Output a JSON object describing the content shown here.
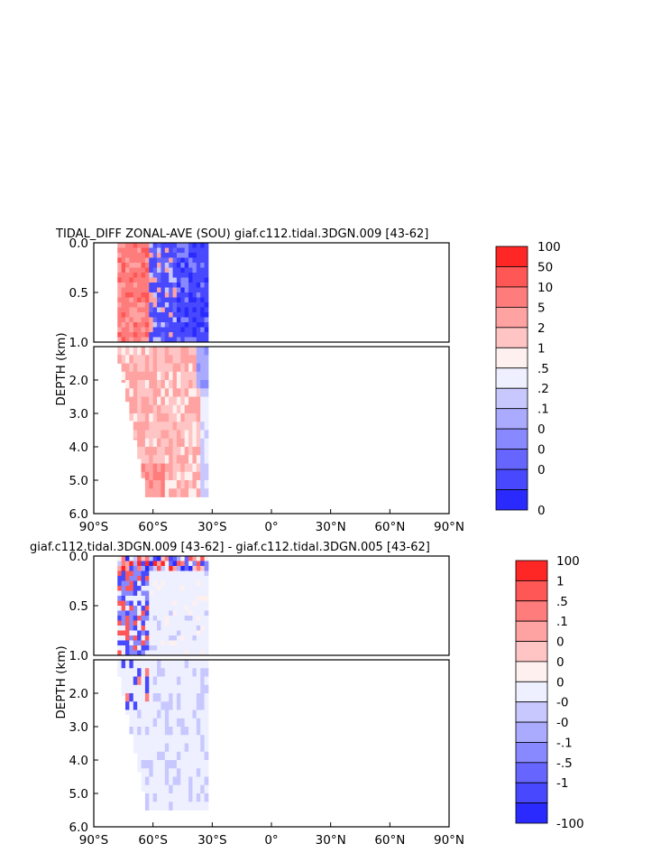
{
  "chart_data": [
    {
      "type": "heatmap",
      "title": "TIDAL_DIFF ZONAL-AVE (SOU) giaf.c112.tidal.3DGN.009 [43-62]",
      "ylabel": "DEPTH (km)",
      "xlim": [
        -90,
        90
      ],
      "ylim_upper_km": [
        0.0,
        1.0
      ],
      "ylim_lower_km": [
        1.0,
        6.0
      ],
      "x_ticks": [
        "90°S",
        "60°S",
        "30°S",
        "0°",
        "30°N",
        "60°N",
        "90°N"
      ],
      "y_ticks_upper": [
        "0.0",
        "0.5",
        "1.0"
      ],
      "y_ticks_lower": [
        "2.0",
        "3.0",
        "4.0",
        "5.0",
        "6.0"
      ],
      "colorbar": {
        "labels": [
          "100",
          "50",
          "10",
          "5",
          "2",
          "1",
          ".5",
          ".2",
          ".1",
          "0",
          "0",
          "0",
          "0"
        ],
        "colors": [
          "#ff2626",
          "#ff5656",
          "#ff7c7c",
          "#ffa2a2",
          "#ffc4c4",
          "#fff0f0",
          "#eef0ff",
          "#c8c8ff",
          "#aaaaff",
          "#8888ff",
          "#6666ff",
          "#4848ff",
          "#2a2aff"
        ]
      },
      "data_extent": {
        "lon_min": -78,
        "lon_max": -32,
        "max_depth_km": 5.5
      },
      "pattern": "upper ocean: red west of 60°S, blue 60°S–30°S; deep ocean mostly light red with blue patches near 30°S"
    },
    {
      "type": "heatmap",
      "title": "giaf.c112.tidal.3DGN.009 [43-62] - giaf.c112.tidal.3DGN.005 [43-62]",
      "ylabel": "DEPTH (km)",
      "xlim": [
        -90,
        90
      ],
      "ylim_upper_km": [
        0.0,
        1.0
      ],
      "ylim_lower_km": [
        1.0,
        6.0
      ],
      "x_ticks": [
        "90°S",
        "60°S",
        "30°S",
        "0°",
        "30°N",
        "60°N",
        "90°N"
      ],
      "y_ticks_upper": [
        "0.0",
        "0.5",
        "1.0"
      ],
      "y_ticks_lower": [
        "2.0",
        "3.0",
        "4.0",
        "5.0",
        "6.0"
      ],
      "colorbar": {
        "labels": [
          "100",
          "1",
          ".5",
          ".1",
          "0",
          "0",
          "0",
          "-0",
          "-0",
          "-.1",
          "-.5",
          "-1",
          "-100"
        ],
        "colors": [
          "#ff2626",
          "#ff5656",
          "#ff7c7c",
          "#ffa2a2",
          "#ffc4c4",
          "#fff0f0",
          "#eef0ff",
          "#c8c8ff",
          "#aaaaff",
          "#8888ff",
          "#6666ff",
          "#4848ff",
          "#2a2aff"
        ]
      },
      "data_extent": {
        "lon_min": -78,
        "lon_max": -32,
        "max_depth_km": 5.5
      },
      "pattern": "strong mixed red/blue noise near surface south of 60°S; near-zero elsewhere with faint blue patches at depth"
    }
  ]
}
